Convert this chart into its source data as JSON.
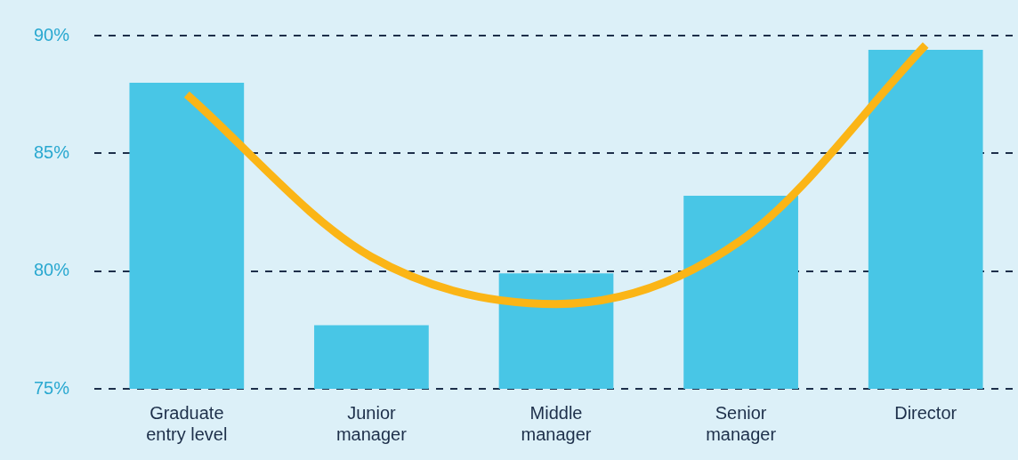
{
  "chart_data": {
    "type": "bar",
    "categories": [
      "Graduate\nentry level",
      "Junior\nmanager",
      "Middle\nmanager",
      "Senior\nmanager",
      "Director"
    ],
    "series": [
      {
        "color": "#48c6e6",
        "values": [
          88.0,
          77.7,
          79.9,
          83.2,
          89.4
        ]
      },
      {
        "type": "line",
        "color": "#fbb516",
        "values": [
          87.5,
          80.6,
          78.6,
          81.3,
          89.6
        ]
      }
    ],
    "ylim": [
      75,
      90
    ],
    "yticks": [
      {
        "value": 75,
        "label": "75%"
      },
      {
        "value": 80,
        "label": "80%"
      },
      {
        "value": 85,
        "label": "85%"
      },
      {
        "value": 90,
        "label": "90%"
      }
    ],
    "grid": "y",
    "legend": false,
    "marker": "none"
  }
}
